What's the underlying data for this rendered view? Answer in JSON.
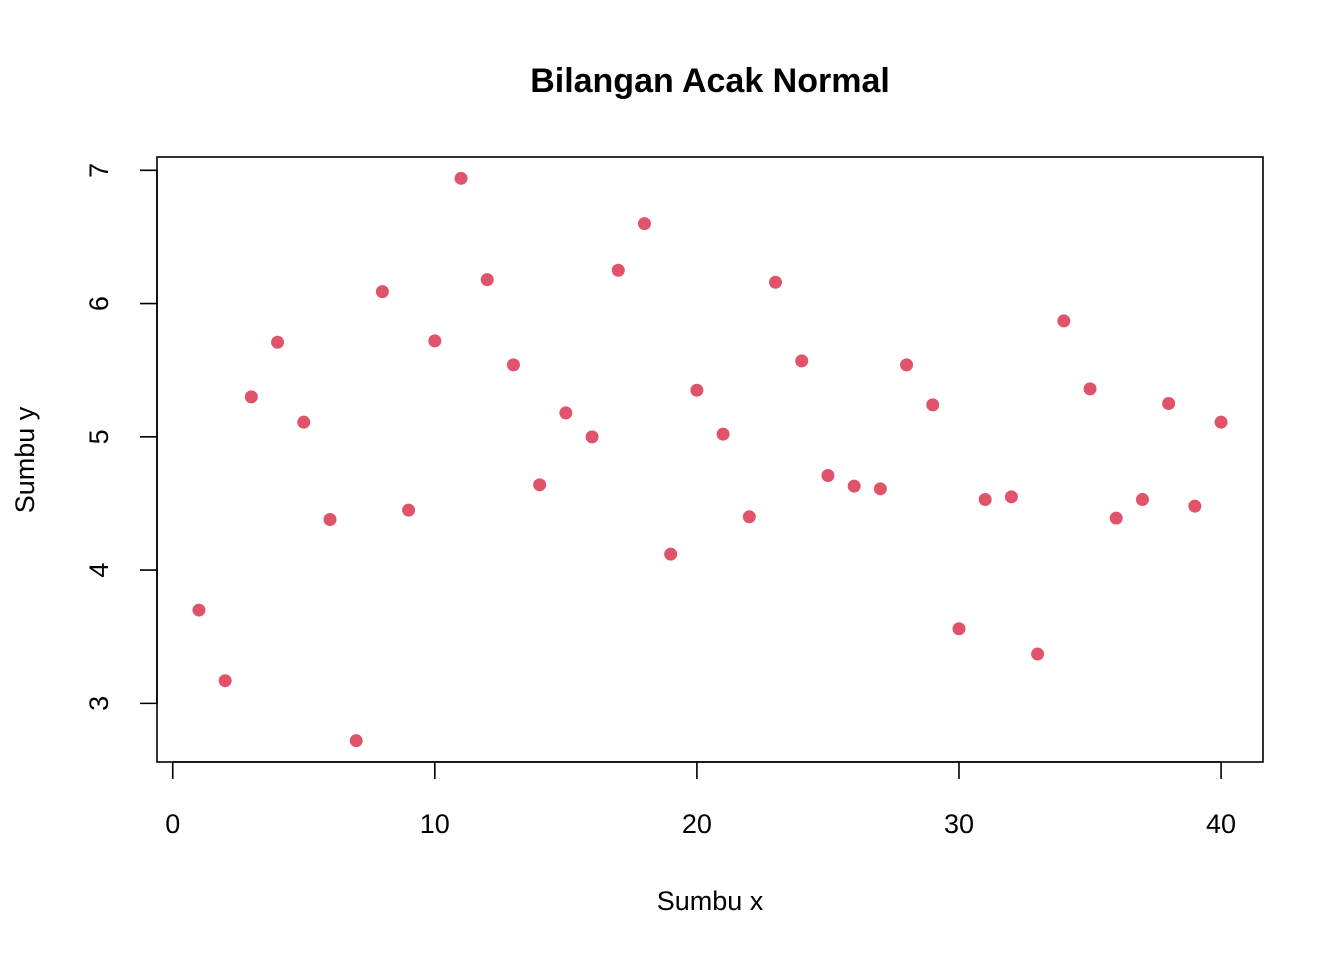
{
  "chart_data": {
    "type": "scatter",
    "title": "Bilangan Acak Normal",
    "xlabel": "Sumbu x",
    "ylabel": "Sumbu y",
    "xlim": [
      -0.6,
      41.6
    ],
    "ylim": [
      2.56,
      7.1
    ],
    "x_ticks": [
      0,
      10,
      20,
      30,
      40
    ],
    "y_ticks": [
      3,
      4,
      5,
      6,
      7
    ],
    "grid": false,
    "marker_color": "#DF536B",
    "x": [
      1,
      2,
      3,
      4,
      5,
      6,
      7,
      8,
      9,
      10,
      11,
      12,
      13,
      14,
      15,
      16,
      17,
      18,
      19,
      20,
      21,
      22,
      23,
      24,
      25,
      26,
      27,
      28,
      29,
      30,
      31,
      32,
      33,
      34,
      35,
      36,
      37,
      38,
      39,
      40
    ],
    "y": [
      3.7,
      3.17,
      5.3,
      5.71,
      5.11,
      4.38,
      2.72,
      6.09,
      4.45,
      5.72,
      6.94,
      6.18,
      5.54,
      4.64,
      5.18,
      5.0,
      6.25,
      6.6,
      4.12,
      5.35,
      5.02,
      4.4,
      6.16,
      5.57,
      4.71,
      4.63,
      4.61,
      5.54,
      5.24,
      3.56,
      4.53,
      4.55,
      3.37,
      5.87,
      5.36,
      4.39,
      4.53,
      5.25,
      4.48,
      5.11
    ]
  }
}
